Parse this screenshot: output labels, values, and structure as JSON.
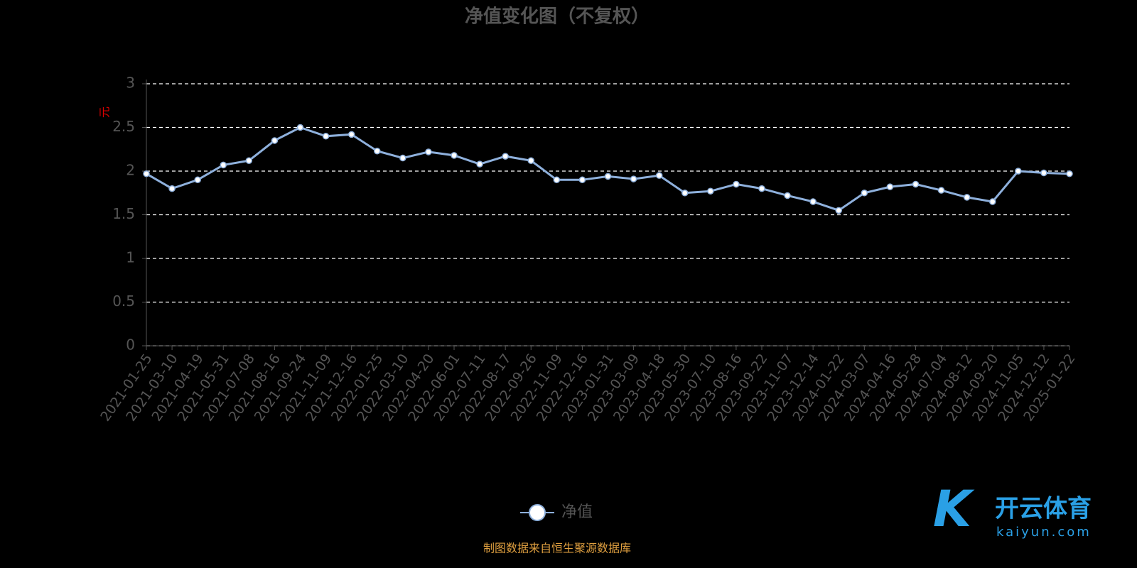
{
  "chart_data": {
    "type": "line",
    "title": "净值变化图（不复权）",
    "y_label": "元",
    "categories": [
      "2021-01-25",
      "2021-03-10",
      "2021-04-19",
      "2021-05-31",
      "2021-07-08",
      "2021-08-16",
      "2021-09-24",
      "2021-11-09",
      "2021-12-16",
      "2022-01-25",
      "2022-03-10",
      "2022-04-20",
      "2022-06-01",
      "2022-07-11",
      "2022-08-17",
      "2022-09-26",
      "2022-11-09",
      "2022-12-16",
      "2023-01-31",
      "2023-03-09",
      "2023-04-18",
      "2023-05-30",
      "2023-07-10",
      "2023-08-16",
      "2023-09-22",
      "2023-11-07",
      "2023-12-14",
      "2024-01-22",
      "2024-03-07",
      "2024-04-16",
      "2024-05-28",
      "2024-07-04",
      "2024-08-12",
      "2024-09-20",
      "2024-11-05",
      "2024-12-12",
      "2025-01-22"
    ],
    "series": [
      {
        "name": "净值",
        "color": "#8eb0dc",
        "values": [
          1.97,
          1.8,
          1.9,
          2.07,
          2.12,
          2.35,
          2.5,
          2.4,
          2.42,
          2.23,
          2.15,
          2.22,
          2.18,
          2.08,
          2.17,
          2.12,
          1.9,
          1.9,
          1.94,
          1.91,
          1.95,
          1.75,
          1.77,
          1.85,
          1.8,
          1.72,
          1.65,
          1.55,
          1.75,
          1.82,
          1.85,
          1.78,
          1.7,
          1.65,
          2.0,
          1.98,
          1.97
        ]
      }
    ],
    "ylim": [
      0,
      3
    ],
    "yticks": [
      0,
      0.5,
      1,
      1.5,
      2,
      2.5,
      3
    ],
    "grid": true,
    "source": "制图数据来自恒生聚源数据库",
    "watermark": {
      "name": "开云体育",
      "site": "kaiyun.com"
    }
  }
}
